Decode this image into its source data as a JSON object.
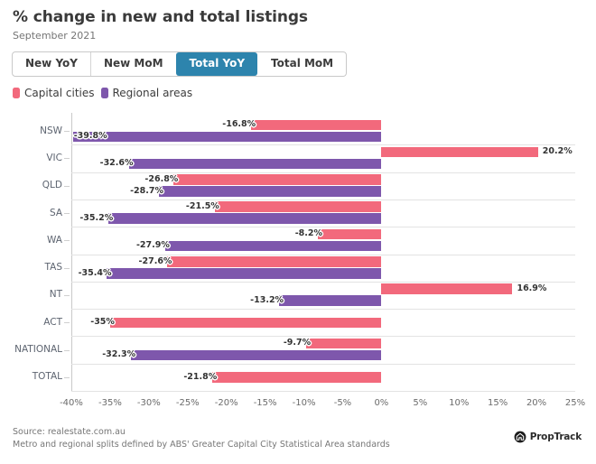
{
  "header": {
    "title": "% change in new and total listings",
    "subtitle": "September 2021"
  },
  "tabs": [
    {
      "label": "New YoY",
      "active": false
    },
    {
      "label": "New MoM",
      "active": false
    },
    {
      "label": "Total YoY",
      "active": true
    },
    {
      "label": "Total MoM",
      "active": false
    }
  ],
  "colors": {
    "capital_cities": "#f2697c",
    "regional_areas": "#7e57ac",
    "active_tab": "#2d84ad"
  },
  "legend": [
    {
      "label": "Capital cities",
      "color": "#f2697c"
    },
    {
      "label": "Regional areas",
      "color": "#7e57ac"
    }
  ],
  "chart_data": {
    "type": "bar",
    "orientation": "horizontal",
    "title": "% change in new and total listings",
    "subtitle": "September 2021",
    "categories": [
      "NSW",
      "VIC",
      "QLD",
      "SA",
      "WA",
      "TAS",
      "NT",
      "ACT",
      "NATIONAL",
      "TOTAL"
    ],
    "series": [
      {
        "name": "Capital cities",
        "color": "#f2697c",
        "values": [
          -16.8,
          20.2,
          -26.8,
          -21.5,
          -8.2,
          -27.6,
          16.9,
          -35,
          -9.7,
          -21.8
        ],
        "labels": [
          "-16.8%",
          "20.2%",
          "-26.8%",
          "-21.5%",
          "-8.2%",
          "-27.6%",
          "16.9%",
          "-35%",
          "-9.7%",
          "-21.8%"
        ]
      },
      {
        "name": "Regional areas",
        "color": "#7e57ac",
        "values": [
          -39.8,
          -32.6,
          -28.7,
          -35.2,
          -27.9,
          -35.4,
          -13.2,
          null,
          -32.3,
          null
        ],
        "labels": [
          "-39.8%",
          "-32.6%",
          "-28.7%",
          "-35.2%",
          "-27.9%",
          "-35.4%",
          "-13.2%",
          null,
          "-32.3%",
          null
        ]
      }
    ],
    "xlim": [
      -40,
      25
    ],
    "xtick_step": 5,
    "xticks": [
      "-40%",
      "-35%",
      "-30%",
      "-25%",
      "-20%",
      "-15%",
      "-10%",
      "-5%",
      "0%",
      "5%",
      "10%",
      "15%",
      "20%",
      "25%"
    ],
    "grid": "row-separators",
    "legend_position": "top-left"
  },
  "footer": {
    "source_line1": "Source: realestate.com.au",
    "source_line2": "Metro and regional splits defined by ABS' Greater Capital City Statistical Area standards",
    "brand": "PropTrack"
  }
}
